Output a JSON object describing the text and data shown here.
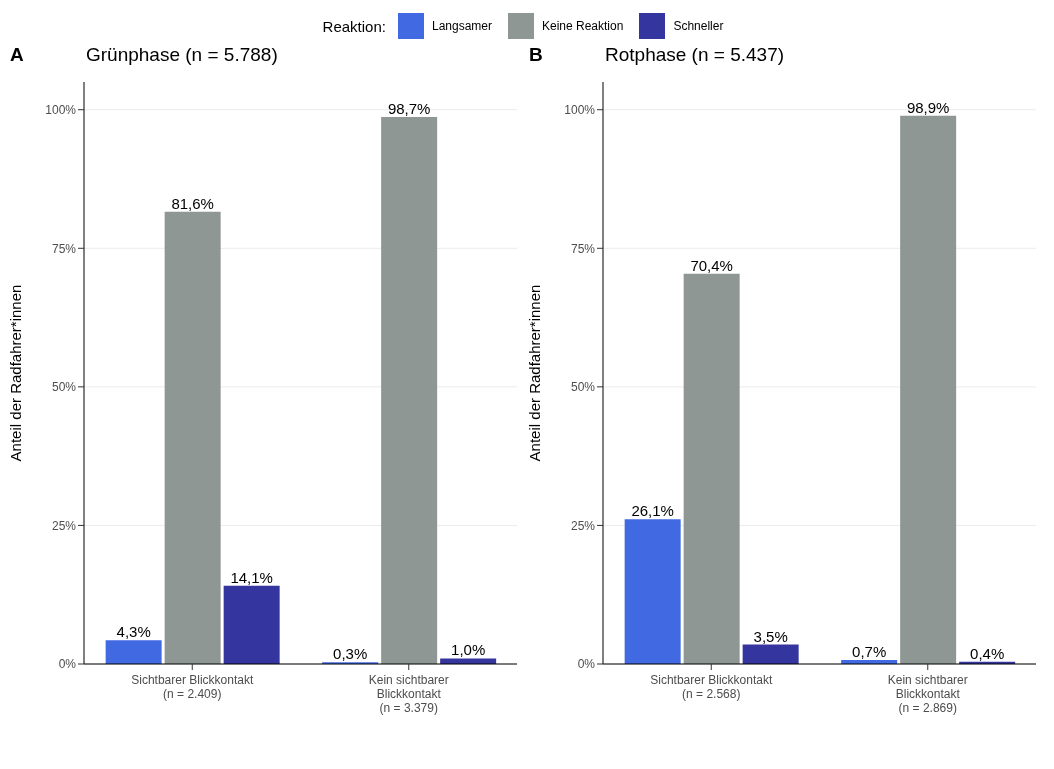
{
  "chart_data": [
    {
      "type": "bar",
      "title": "Grünphase (n = 5.788)",
      "annotations": [
        "A"
      ],
      "ylabel": "Anteil der Radfahrer*innen",
      "legend_title": "Reaktion:",
      "legend": "top",
      "grid": "y",
      "categories": [
        "Sichtbarer Blickkontakt\n(n = 2.409)",
        "Kein sichtbarer\nBlickkontakt\n(n = 3.379)"
      ],
      "ylim": [
        0,
        105
      ],
      "yticks": [
        {
          "value": 0,
          "label": "0%"
        },
        {
          "value": 25,
          "label": "25%"
        },
        {
          "value": 50,
          "label": "50%"
        },
        {
          "value": 75,
          "label": "75%"
        },
        {
          "value": 100,
          "label": "100%"
        }
      ],
      "series": [
        {
          "name": "Langsamer",
          "color": "#4169e1",
          "values": [
            4.3,
            0.3
          ],
          "value_labels": [
            "4,3%",
            "0,3%"
          ]
        },
        {
          "name": "Keine Reaktion",
          "color": "#8e9794",
          "values": [
            81.6,
            98.7
          ],
          "value_labels": [
            "81,6%",
            "98,7%"
          ]
        },
        {
          "name": "Schneller",
          "color": "#3535a0",
          "values": [
            14.1,
            1.0
          ],
          "value_labels": [
            "14,1%",
            "1,0%"
          ]
        }
      ]
    },
    {
      "type": "bar",
      "title": "Rotphase (n = 5.437)",
      "annotations": [
        "B"
      ],
      "ylabel": "Anteil der Radfahrer*innen",
      "grid": "y",
      "categories": [
        "Sichtbarer Blickkontakt\n(n = 2.568)",
        "Kein sichtbarer\nBlickkontakt\n(n = 2.869)"
      ],
      "ylim": [
        0,
        105
      ],
      "yticks": [
        {
          "value": 0,
          "label": "0%"
        },
        {
          "value": 25,
          "label": "25%"
        },
        {
          "value": 50,
          "label": "50%"
        },
        {
          "value": 75,
          "label": "75%"
        },
        {
          "value": 100,
          "label": "100%"
        }
      ],
      "series": [
        {
          "color": "#4169e1",
          "values": [
            26.1,
            0.7
          ],
          "value_labels": [
            "26,1%",
            "0,7%"
          ]
        },
        {
          "color": "#8e9794",
          "values": [
            70.4,
            98.9
          ],
          "value_labels": [
            "70,4%",
            "98,9%"
          ]
        },
        {
          "color": "#3535a0",
          "values": [
            3.5,
            0.4
          ],
          "value_labels": [
            "3,5%",
            "0,4%"
          ]
        }
      ]
    }
  ]
}
